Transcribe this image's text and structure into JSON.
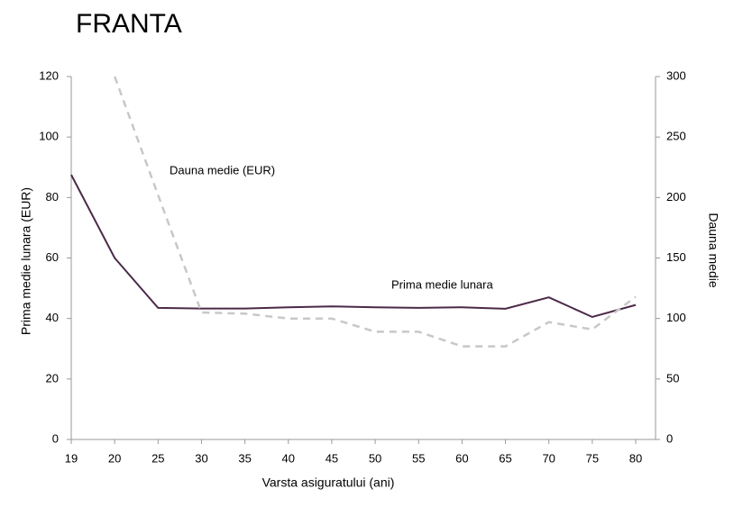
{
  "chart_data": {
    "type": "line",
    "title": "FRANTA",
    "x_label": "Varsta asiguratului (ani)",
    "y_label": "Prima medie lunara (EUR)",
    "y2_label": "Dauna medie",
    "categories": [
      "19",
      "20",
      "25",
      "30",
      "35",
      "40",
      "45",
      "50",
      "55",
      "60",
      "65",
      "70",
      "75",
      "80"
    ],
    "series": [
      {
        "name": "Prima medie lunara",
        "color": "#4b2a48",
        "dash": false,
        "values": [
          87.5,
          60,
          43.5,
          43.3,
          43.3,
          43.7,
          44,
          43.7,
          43.5,
          43.7,
          43.2,
          47,
          40.5,
          44.5
        ]
      },
      {
        "name": "Dauna medie (EUR)",
        "color": "#c8c8c8",
        "dash": true,
        "axis": "y2",
        "values": [
          null,
          300,
          202,
          105,
          104,
          100,
          100,
          89,
          89,
          77,
          77,
          97,
          91,
          118
        ]
      }
    ],
    "ylim": [
      0,
      120
    ],
    "yticks": [
      0,
      20,
      40,
      60,
      80,
      100,
      120
    ],
    "y2lim": [
      0,
      300
    ],
    "y2ticks": [
      0,
      50,
      100,
      150,
      200,
      250,
      300
    ]
  }
}
